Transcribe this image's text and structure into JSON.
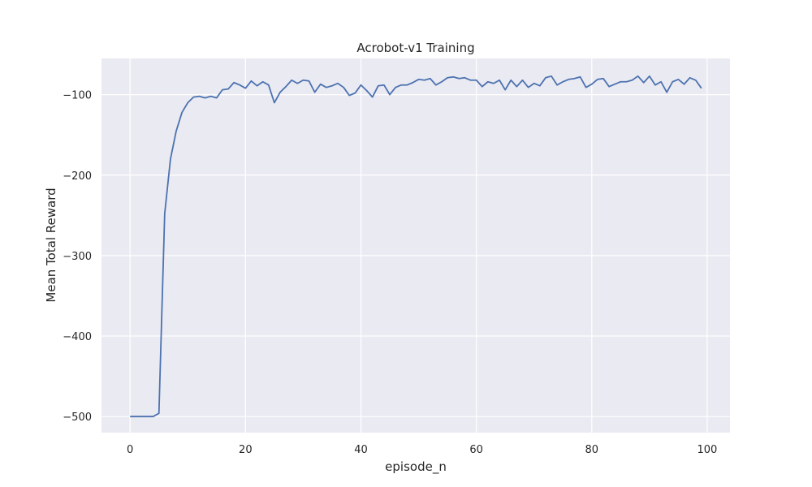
{
  "chart_data": {
    "type": "line",
    "title": "Acrobot-v1 Training",
    "xlabel": "episode_n",
    "ylabel": "Mean Total Reward",
    "xlim": [
      -4.95,
      103.95
    ],
    "ylim": [
      -520,
      -55
    ],
    "xticks": [
      0,
      20,
      40,
      60,
      80,
      100
    ],
    "yticks": [
      -500,
      -400,
      -300,
      -200,
      -100
    ],
    "grid": true,
    "style": {
      "background": "#eaeaf2",
      "grid_color": "#ffffff",
      "line_color": "#4c72b0"
    },
    "series": [
      {
        "x": [
          0,
          1,
          2,
          3,
          4,
          5,
          6,
          7,
          8,
          9,
          10,
          11,
          12,
          13,
          14,
          15,
          16,
          17,
          18,
          19,
          20,
          21,
          22,
          23,
          24,
          25,
          26,
          27,
          28,
          29,
          30,
          31,
          32,
          33,
          34,
          35,
          36,
          37,
          38,
          39,
          40,
          41,
          42,
          43,
          44,
          45,
          46,
          47,
          48,
          49,
          50,
          51,
          52,
          53,
          54,
          55,
          56,
          57,
          58,
          59,
          60,
          61,
          62,
          63,
          64,
          65,
          66,
          67,
          68,
          69,
          70,
          71,
          72,
          73,
          74,
          75,
          76,
          77,
          78,
          79,
          80,
          81,
          82,
          83,
          84,
          85,
          86,
          87,
          88,
          89,
          90,
          91,
          92,
          93,
          94,
          95,
          96,
          97,
          98,
          99
        ],
        "values": [
          -500,
          -500,
          -500,
          -500,
          -500,
          -496,
          -248,
          -180,
          -145,
          -122,
          -110,
          -103,
          -102,
          -104,
          -102,
          -104,
          -94,
          -93,
          -85,
          -88,
          -92,
          -83,
          -89,
          -84,
          -88,
          -110,
          -97,
          -90,
          -82,
          -86,
          -82,
          -83,
          -97,
          -87,
          -91,
          -89,
          -86,
          -91,
          -101,
          -98,
          -88,
          -95,
          -103,
          -89,
          -88,
          -100,
          -91,
          -88,
          -88,
          -85,
          -81,
          -82,
          -80,
          -88,
          -84,
          -79,
          -78,
          -80,
          -79,
          -82,
          -82,
          -90,
          -84,
          -86,
          -82,
          -94,
          -82,
          -90,
          -82,
          -91,
          -86,
          -89,
          -79,
          -77,
          -88,
          -84,
          -81,
          -80,
          -78,
          -91,
          -87,
          -81,
          -80,
          -90,
          -87,
          -84,
          -84,
          -82,
          -77,
          -85,
          -77,
          -88,
          -84,
          -97,
          -84,
          -81,
          -87,
          -79,
          -82,
          -92
        ]
      }
    ]
  }
}
